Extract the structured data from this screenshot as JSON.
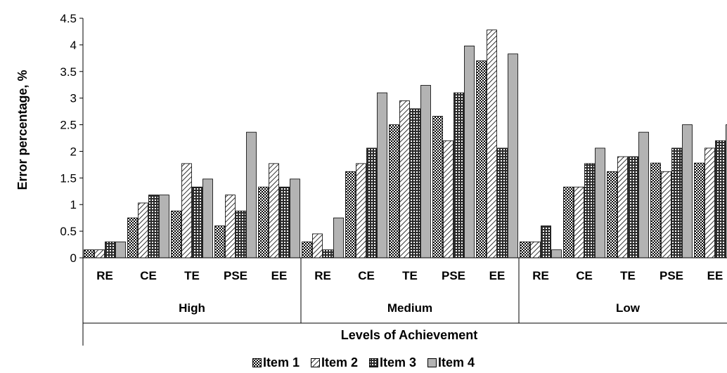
{
  "chart_data": {
    "type": "bar",
    "ylabel": "Error percentage, %",
    "xlabel": "Levels of Achievement",
    "ylim": [
      0,
      4.5
    ],
    "yticks": [
      0,
      0.5,
      1,
      1.5,
      2,
      2.5,
      3,
      3.5,
      4,
      4.5
    ],
    "ytick_labels": [
      "0",
      "0.5",
      "1",
      "1.5",
      "2",
      "2.5",
      "3",
      "3.5",
      "4",
      "4.5"
    ],
    "grid": false,
    "legend_position": "bottom",
    "groups": [
      "High",
      "Medium",
      "Low"
    ],
    "subcategories": [
      "RE",
      "CE",
      "TE",
      "PSE",
      "EE"
    ],
    "series": [
      {
        "name": "Item 1",
        "pattern": "checker-dense",
        "values": [
          [
            0.15,
            0.75,
            0.88,
            0.6,
            1.33
          ],
          [
            0.3,
            1.62,
            2.5,
            2.66,
            3.7
          ],
          [
            0.3,
            1.33,
            1.62,
            1.78,
            1.78
          ]
        ]
      },
      {
        "name": "Item 2",
        "pattern": "diagonal-hatch",
        "values": [
          [
            0.15,
            1.03,
            1.77,
            1.18,
            1.77
          ],
          [
            0.45,
            1.77,
            2.95,
            2.2,
            4.28
          ],
          [
            0.3,
            1.33,
            1.9,
            1.62,
            2.06
          ]
        ]
      },
      {
        "name": "Item 3",
        "pattern": "checker-dark",
        "values": [
          [
            0.3,
            1.18,
            1.33,
            0.88,
            1.33
          ],
          [
            0.15,
            2.06,
            2.8,
            3.1,
            2.06
          ],
          [
            0.6,
            1.77,
            1.9,
            2.06,
            2.2
          ]
        ]
      },
      {
        "name": "Item 4",
        "pattern": "solid-gray",
        "values": [
          [
            0.3,
            1.18,
            1.48,
            2.36,
            1.48
          ],
          [
            0.75,
            3.1,
            3.24,
            3.98,
            3.83
          ],
          [
            0.15,
            2.06,
            2.36,
            2.5,
            2.5
          ]
        ]
      }
    ]
  },
  "colors": {
    "bar_fill": "#b3b3b3",
    "pattern_ink": "#000000",
    "axis": "#000000"
  }
}
